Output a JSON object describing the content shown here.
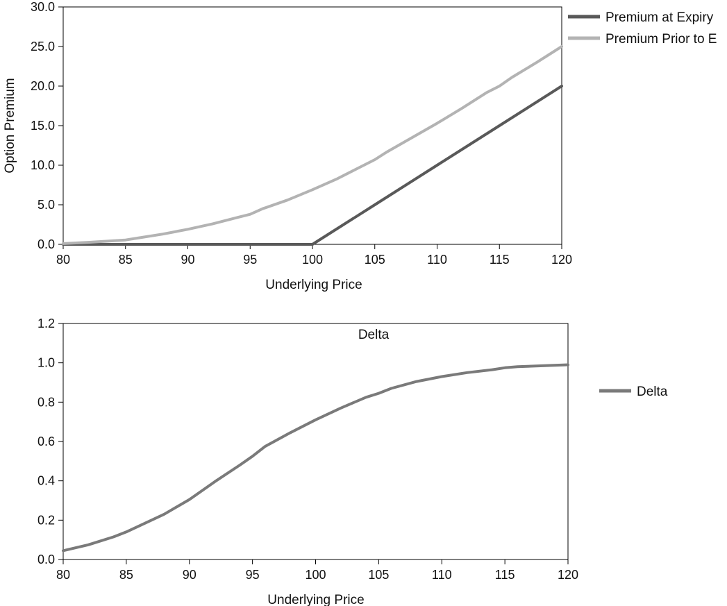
{
  "colors": {
    "expiry": "#595959",
    "prior": "#b3b3b3",
    "delta": "#7a7a7a",
    "axis": "#000000"
  },
  "chart_data": [
    {
      "type": "line",
      "title": "",
      "xlabel": "Underlying Price",
      "ylabel": "Option Premium",
      "xlim": [
        80,
        120
      ],
      "ylim": [
        0,
        30
      ],
      "xticks": [
        "80",
        "85",
        "90",
        "95",
        "100",
        "105",
        "110",
        "115",
        "120"
      ],
      "yticks": [
        "0.0",
        "5.0",
        "10.0",
        "15.0",
        "20.0",
        "25.0",
        "30.0"
      ],
      "grid": false,
      "legend_position": "right",
      "series": [
        {
          "name": "Premium at Expiry",
          "x": [
            80,
            85,
            90,
            95,
            100,
            105,
            110,
            115,
            120
          ],
          "y": [
            0,
            0,
            0,
            0,
            0,
            5,
            10,
            15,
            20
          ]
        },
        {
          "name": "Premium Prior to Expiry",
          "legend_label": "Premium Prior to E",
          "x": [
            80,
            82,
            84,
            85,
            86,
            88,
            90,
            92,
            94,
            95,
            96,
            98,
            100,
            102,
            104,
            105,
            106,
            108,
            110,
            112,
            114,
            115,
            116,
            118,
            120
          ],
          "y": [
            0.1,
            0.25,
            0.45,
            0.55,
            0.8,
            1.3,
            1.9,
            2.6,
            3.4,
            3.8,
            4.5,
            5.6,
            6.9,
            8.3,
            9.9,
            10.7,
            11.7,
            13.5,
            15.3,
            17.2,
            19.2,
            20.0,
            21.1,
            23.0,
            25.0
          ]
        }
      ]
    },
    {
      "type": "line",
      "title": "Delta",
      "xlabel": "Underlying Price",
      "ylabel": "",
      "xlim": [
        80,
        120
      ],
      "ylim": [
        0,
        1.2
      ],
      "xticks": [
        "80",
        "85",
        "90",
        "95",
        "100",
        "105",
        "110",
        "115",
        "120"
      ],
      "yticks": [
        "0.0",
        "0.2",
        "0.4",
        "0.6",
        "0.8",
        "1.0",
        "1.2"
      ],
      "grid": false,
      "legend_position": "right",
      "series": [
        {
          "name": "Delta",
          "x": [
            80,
            82,
            84,
            85,
            86,
            88,
            90,
            92,
            94,
            95,
            96,
            98,
            100,
            102,
            104,
            105,
            106,
            108,
            110,
            112,
            114,
            115,
            116,
            118,
            120
          ],
          "y": [
            0.045,
            0.075,
            0.115,
            0.14,
            0.17,
            0.23,
            0.305,
            0.395,
            0.48,
            0.525,
            0.575,
            0.645,
            0.71,
            0.77,
            0.825,
            0.845,
            0.87,
            0.905,
            0.93,
            0.95,
            0.965,
            0.975,
            0.98,
            0.985,
            0.99
          ]
        }
      ]
    }
  ]
}
